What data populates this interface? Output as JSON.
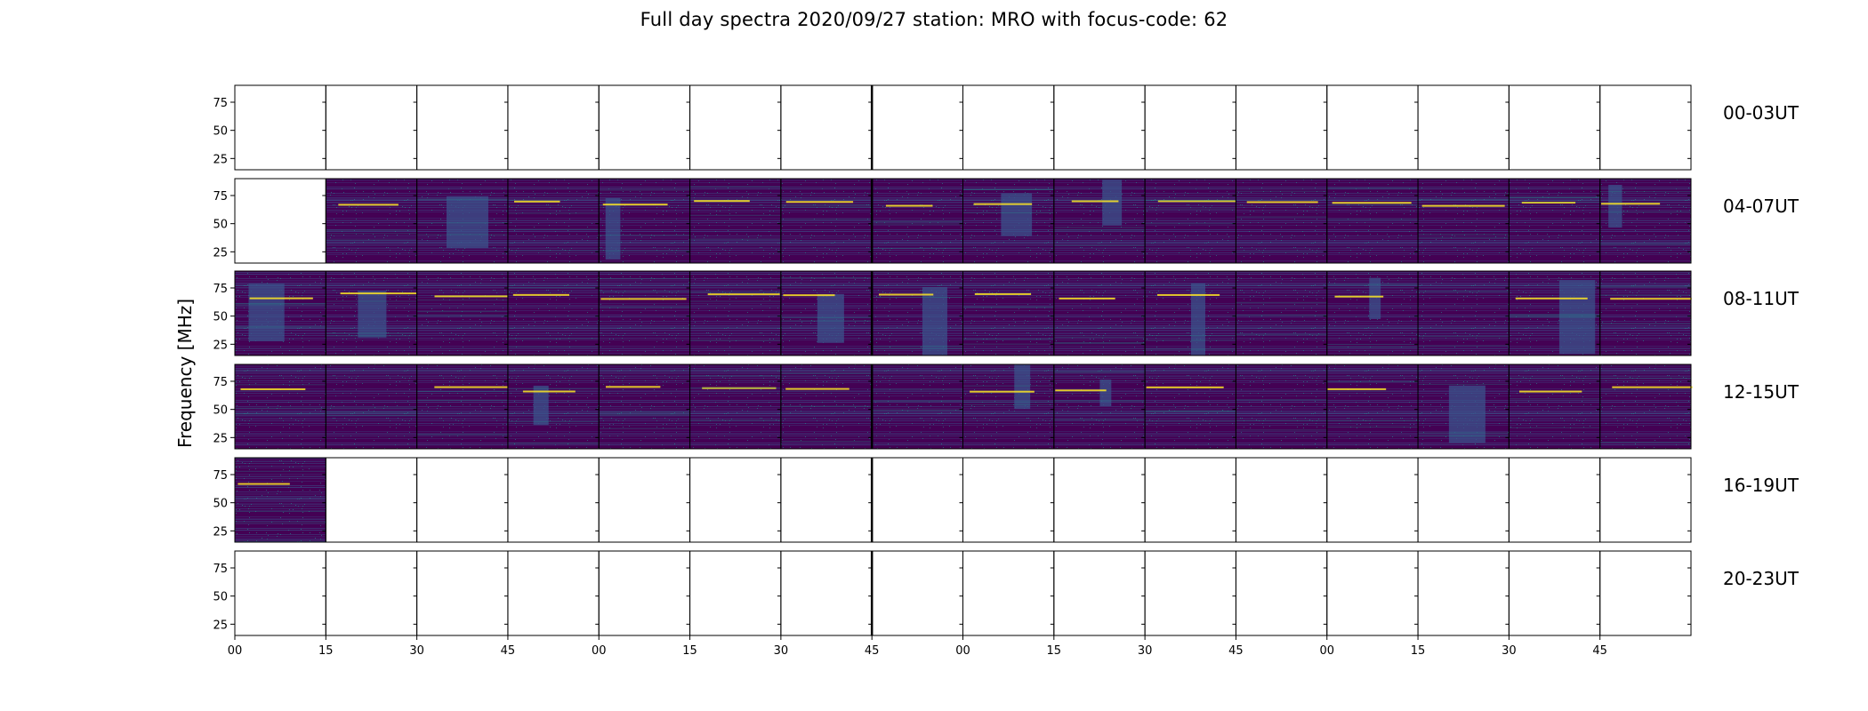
{
  "chart_data": {
    "type": "heatmap",
    "title": "Full day spectra 2020/09/27 station: MRO with focus-code: 62",
    "ylabel": "Frequency [MHz]",
    "xlabel": "",
    "y_ticks": [
      25,
      50,
      75
    ],
    "ylim": [
      15,
      90
    ],
    "x_tick_labels": [
      "00",
      "15",
      "30",
      "45",
      "00",
      "15",
      "30",
      "45",
      "00",
      "15",
      "30",
      "45",
      "00",
      "15",
      "30",
      "45"
    ],
    "colormap": "viridis",
    "rows": [
      {
        "label": "00-03UT",
        "filled": [
          false,
          false,
          false,
          false,
          false,
          false,
          false,
          false,
          false,
          false,
          false,
          false,
          false,
          false,
          false,
          false
        ]
      },
      {
        "label": "04-07UT",
        "filled": [
          false,
          true,
          true,
          true,
          true,
          true,
          true,
          true,
          true,
          true,
          true,
          true,
          true,
          true,
          true,
          true
        ]
      },
      {
        "label": "08-11UT",
        "filled": [
          true,
          true,
          true,
          true,
          true,
          true,
          true,
          true,
          true,
          true,
          true,
          true,
          true,
          true,
          true,
          true
        ]
      },
      {
        "label": "12-15UT",
        "filled": [
          true,
          true,
          true,
          true,
          true,
          true,
          true,
          true,
          true,
          true,
          true,
          true,
          true,
          true,
          true,
          true
        ]
      },
      {
        "label": "16-19UT",
        "filled": [
          true,
          false,
          false,
          false,
          false,
          false,
          false,
          false,
          false,
          false,
          false,
          false,
          false,
          false,
          false,
          false
        ]
      },
      {
        "label": "20-23UT",
        "filled": [
          false,
          false,
          false,
          false,
          false,
          false,
          false,
          false,
          false,
          false,
          false,
          false,
          false,
          false,
          false,
          false
        ]
      }
    ],
    "colors": {
      "background": "#440154",
      "noise": "#3b528b",
      "bright": "#21908d",
      "line": "#fde725"
    }
  }
}
